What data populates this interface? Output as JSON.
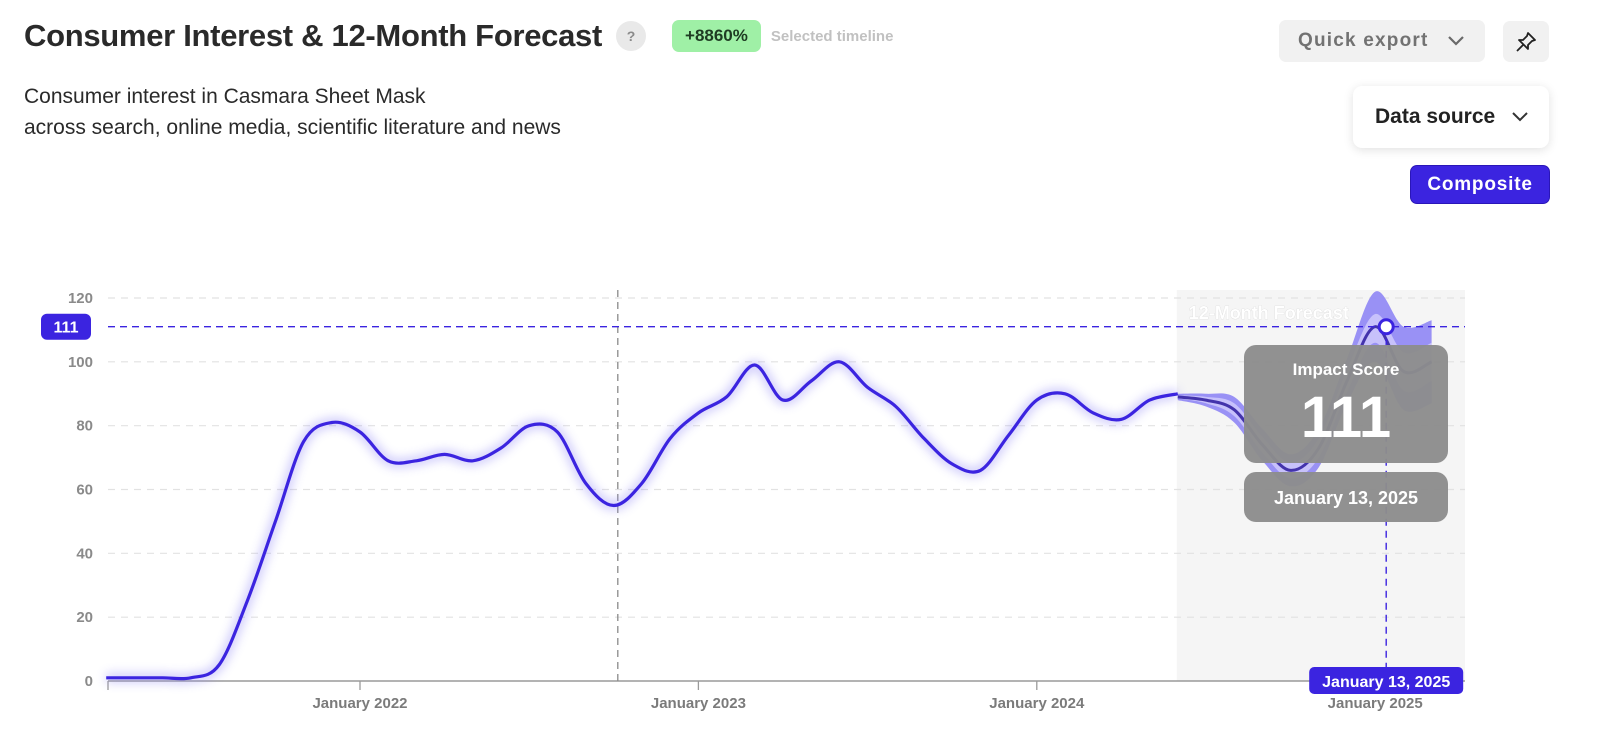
{
  "header": {
    "title": "Consumer Interest & 12-Month Forecast",
    "help_icon": "?",
    "badge": "+8860%",
    "badge_note": "Selected timeline",
    "subtitle_line1": "Consumer interest in Casmara Sheet Mask",
    "subtitle_line2": "across search, online media, scientific literature and news"
  },
  "controls": {
    "quick_export": "Quick export",
    "data_source": "Data source",
    "composite": "Composite",
    "icons": [
      "chevron-down-icon",
      "pin-icon"
    ]
  },
  "colors": {
    "line": "#3b24e0",
    "band_outer": "#8f86f5",
    "band_inner": "#c7c1fb",
    "forecast_bg": "#f5f5f5",
    "tooltip_bg": "#8c8c8c",
    "badge_bg": "#9ff0a6"
  },
  "chart_data": {
    "type": "line",
    "y_ticks": [
      "0",
      "20",
      "40",
      "60",
      "80",
      "100",
      "120"
    ],
    "ylim": [
      0,
      120
    ],
    "x_ticks": [
      "January 2022",
      "January 2023",
      "January 2024",
      "January 2025"
    ],
    "grid": true,
    "forecast_label": "12-Month Forecast",
    "forecast_start": "2024-06",
    "history": [
      [
        "2021-04",
        1
      ],
      [
        "2021-05",
        1
      ],
      [
        "2021-06",
        1
      ],
      [
        "2021-07",
        1
      ],
      [
        "2021-08",
        5
      ],
      [
        "2021-09",
        25
      ],
      [
        "2021-10",
        50
      ],
      [
        "2021-11",
        75
      ],
      [
        "2021-12",
        81
      ],
      [
        "2022-01",
        78
      ],
      [
        "2022-02",
        69
      ],
      [
        "2022-03",
        69
      ],
      [
        "2022-04",
        71
      ],
      [
        "2022-05",
        69
      ],
      [
        "2022-06",
        73
      ],
      [
        "2022-07",
        80
      ],
      [
        "2022-08",
        78
      ],
      [
        "2022-09",
        62
      ],
      [
        "2022-10",
        55
      ],
      [
        "2022-11",
        62
      ],
      [
        "2022-12",
        76
      ],
      [
        "2023-01",
        84
      ],
      [
        "2023-02",
        89
      ],
      [
        "2023-03",
        99
      ],
      [
        "2023-04",
        88
      ],
      [
        "2023-05",
        94
      ],
      [
        "2023-06",
        100
      ],
      [
        "2023-07",
        92
      ],
      [
        "2023-08",
        86
      ],
      [
        "2023-09",
        76
      ],
      [
        "2023-10",
        68
      ],
      [
        "2023-11",
        66
      ],
      [
        "2023-12",
        77
      ],
      [
        "2024-01",
        88
      ],
      [
        "2024-02",
        90
      ],
      [
        "2024-03",
        84
      ],
      [
        "2024-04",
        82
      ],
      [
        "2024-05",
        88
      ],
      [
        "2024-06",
        90
      ]
    ],
    "forecast": [
      [
        "2024-06",
        89
      ],
      [
        "2024-07",
        88
      ],
      [
        "2024-08",
        85
      ],
      [
        "2024-09",
        74
      ],
      [
        "2024-10",
        66
      ],
      [
        "2024-11",
        73
      ],
      [
        "2024-12",
        94
      ],
      [
        "2025-01",
        111
      ],
      [
        "2025-02",
        97
      ],
      [
        "2025-03",
        100
      ]
    ],
    "forecast_band_outer": [
      [
        90,
        88
      ],
      [
        90,
        86
      ],
      [
        89,
        81
      ],
      [
        79,
        69
      ],
      [
        71,
        61
      ],
      [
        79,
        67
      ],
      [
        101,
        87
      ],
      [
        122,
        100
      ],
      [
        111,
        85
      ],
      [
        113,
        87
      ]
    ],
    "forecast_band_inner": [
      [
        89.5,
        88.5
      ],
      [
        89,
        87
      ],
      [
        87,
        83
      ],
      [
        76.5,
        71.5
      ],
      [
        68.5,
        63.5
      ],
      [
        76,
        70
      ],
      [
        97.5,
        90.5
      ],
      [
        115,
        106
      ],
      [
        103,
        91
      ],
      [
        106,
        94
      ]
    ],
    "highlight": {
      "date_label": "January 13, 2025",
      "value": 111,
      "value_label": "111",
      "date": "2025-01"
    },
    "tooltip_title": "Impact Score",
    "tooltip_value": "111",
    "tooltip_date": "January 13, 2025",
    "x_marker_label": "January 13, 2025",
    "y_marker_label": "111",
    "reference_line_date": "2022-10"
  }
}
